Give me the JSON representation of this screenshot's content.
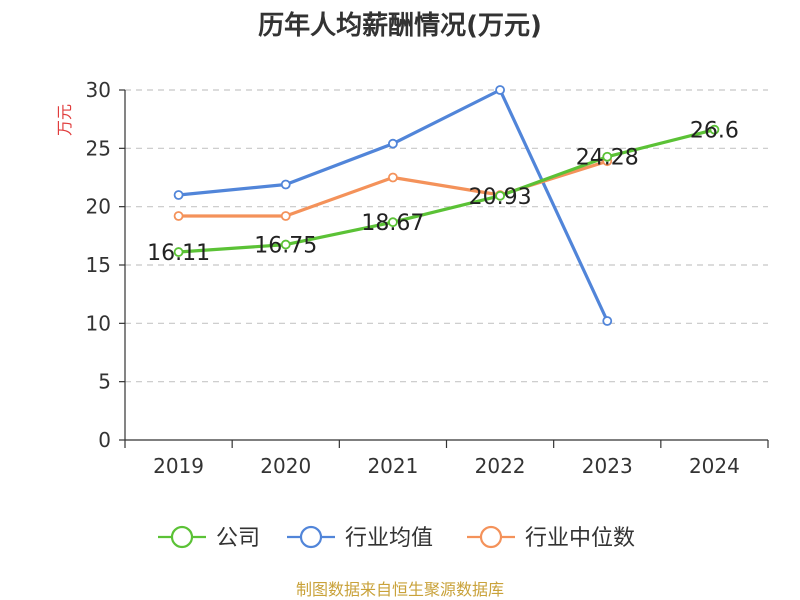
{
  "chart_data": {
    "type": "line",
    "title": "历年人均薪酬情况(万元)",
    "ylabel": "万元",
    "categories": [
      "2019",
      "2020",
      "2021",
      "2022",
      "2023",
      "2024"
    ],
    "ylim": [
      0,
      30
    ],
    "yticks": [
      0,
      5,
      10,
      15,
      20,
      25,
      30
    ],
    "grid": true,
    "legend_position": "bottom",
    "series": [
      {
        "name": "公司",
        "color": "#5bc236",
        "values": [
          16.11,
          16.75,
          18.67,
          20.93,
          24.28,
          26.6
        ],
        "labels": [
          "16.11",
          "16.75",
          "18.67",
          "20.93",
          "24.28",
          "26.6"
        ]
      },
      {
        "name": "行业均值",
        "color": "#5185d9",
        "values": [
          21.0,
          21.9,
          25.4,
          30.0,
          10.2,
          null
        ]
      },
      {
        "name": "行业中位数",
        "color": "#f4925a",
        "values": [
          19.2,
          19.2,
          22.5,
          21.0,
          23.9,
          null
        ]
      }
    ],
    "source": "制图数据来自恒生聚源数据库",
    "ylabel_color": "#e03c3c",
    "source_color": "#c9a23a"
  }
}
